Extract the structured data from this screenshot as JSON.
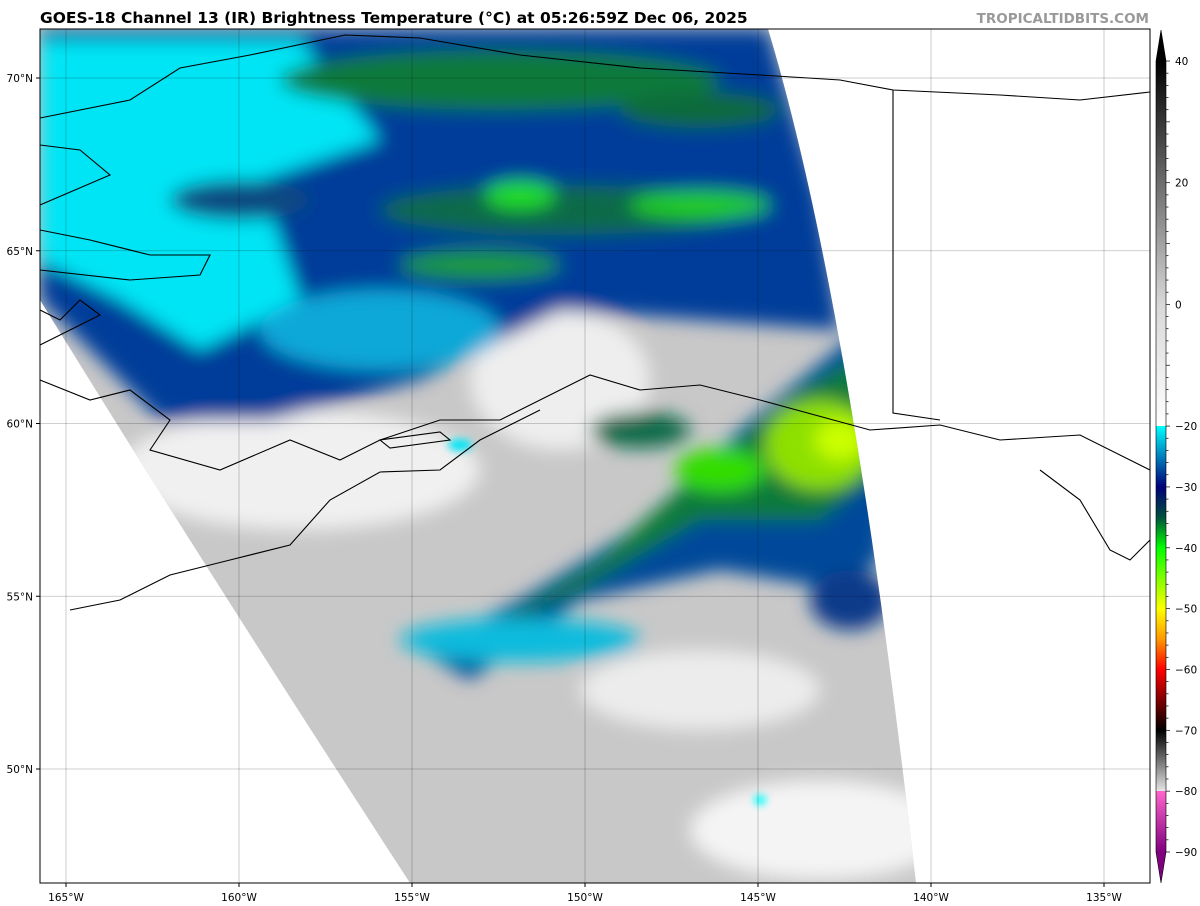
{
  "title": "GOES-18 Channel 13 (IR) Brightness Temperature (°C) at 05:26:59Z Dec 06, 2025",
  "watermark": "TROPICALTIDBITS.COM",
  "map": {
    "lon_ticks": [
      {
        "lon": -165,
        "label": "165°W"
      },
      {
        "lon": -160,
        "label": "160°W"
      },
      {
        "lon": -155,
        "label": "155°W"
      },
      {
        "lon": -150,
        "label": "150°W"
      },
      {
        "lon": -145,
        "label": "145°W"
      },
      {
        "lon": -140,
        "label": "140°W"
      },
      {
        "lon": -135,
        "label": "135°W"
      }
    ],
    "lat_ticks": [
      {
        "lat": 70,
        "label": "70°N"
      },
      {
        "lat": 65,
        "label": "65°N"
      },
      {
        "lat": 60,
        "label": "60°N"
      },
      {
        "lat": 55,
        "label": "55°N"
      },
      {
        "lat": 50,
        "label": "50°N"
      }
    ],
    "grid": true,
    "region": "Alaska / Gulf of Alaska"
  },
  "colorbar": {
    "ticks": [
      40,
      20,
      0,
      -20,
      -30,
      -40,
      -50,
      -60,
      -70,
      -80,
      -90
    ],
    "range": [
      -90,
      40
    ],
    "extend": "both",
    "stops": [
      {
        "t": 40,
        "color": "#000000"
      },
      {
        "t": 0,
        "color": "#d8d8d8"
      },
      {
        "t": -20,
        "color": "#ffffff"
      },
      {
        "t": -20,
        "color": "#00ffff"
      },
      {
        "t": -30,
        "color": "#00007a"
      },
      {
        "t": -35,
        "color": "#00503c"
      },
      {
        "t": -40,
        "color": "#00ff00"
      },
      {
        "t": -50,
        "color": "#ffff00"
      },
      {
        "t": -55,
        "color": "#ff9900"
      },
      {
        "t": -60,
        "color": "#ff0000"
      },
      {
        "t": -70,
        "color": "#000000"
      },
      {
        "t": -80,
        "color": "#e6e6e6"
      },
      {
        "t": -80,
        "color": "#ff66cc"
      },
      {
        "t": -90,
        "color": "#800080"
      }
    ]
  }
}
